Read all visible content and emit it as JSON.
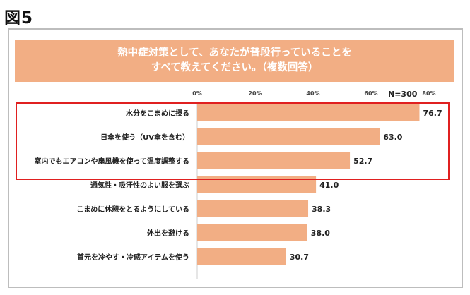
{
  "figure_label": "図5",
  "chart_data": {
    "type": "bar",
    "orientation": "horizontal",
    "title_lines": [
      "熱中症対策として、あなたが普段行っていることを",
      "すべて教えてください。（複数回答）"
    ],
    "n_label": "N=300",
    "categories": [
      "水分をこまめに摂る",
      "日傘を使う（UV傘を含む）",
      "室内でもエアコンや扇風機を使って温度調整する",
      "通気性・吸汗性のよい服を選ぶ",
      "こまめに休憩をとるようにしている",
      "外出を避ける",
      "首元を冷やす・冷感アイテムを使う"
    ],
    "values": [
      76.7,
      63.0,
      52.7,
      41.0,
      38.3,
      38.0,
      30.7
    ],
    "value_labels": [
      "76.7",
      "63.0",
      "52.7",
      "41.0",
      "38.3",
      "38.0",
      "30.7"
    ],
    "x_ticks": [
      "0%",
      "20%",
      "40%",
      "60%",
      "80%"
    ],
    "xlim": [
      0,
      80
    ],
    "highlighted_categories": [
      0,
      1,
      2
    ],
    "bar_color": "#f2ae84",
    "highlight_color": "#e02020",
    "grid": false
  }
}
